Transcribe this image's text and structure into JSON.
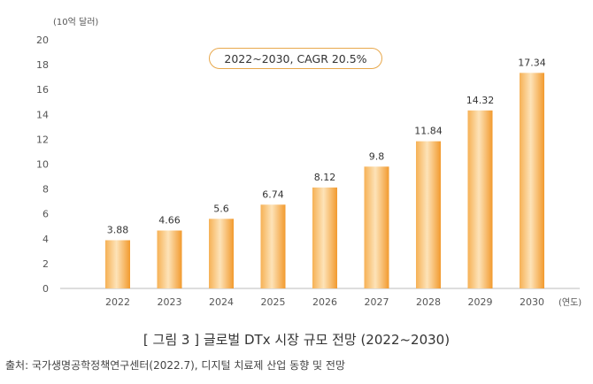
{
  "chart_data": {
    "type": "bar",
    "categories": [
      "2022",
      "2023",
      "2024",
      "2025",
      "2026",
      "2027",
      "2028",
      "2029",
      "2030"
    ],
    "values": [
      3.88,
      4.66,
      5.6,
      6.74,
      8.12,
      9.8,
      11.84,
      14.32,
      17.34
    ],
    "value_labels": [
      "3.88",
      "4.66",
      "5.6",
      "6.74",
      "8.12",
      "9.8",
      "11.84",
      "14.32",
      "17.34"
    ],
    "ylabel": "(10억 달러)",
    "xlabel": "(연도)",
    "ylim": [
      0,
      20
    ],
    "yticks": [
      "0",
      "2",
      "4",
      "6",
      "8",
      "10",
      "12",
      "14",
      "16",
      "18",
      "20"
    ],
    "annotation": "2022~2030, CAGR 20.5%",
    "bar_color": "#f2a33c",
    "grid": false,
    "legend": "none"
  },
  "caption": "[ 그림 3 ] 글로벌 DTx 시장 규모 전망 (2022~2030)",
  "source": "출처: 국가생명공학정책연구센터(2022.7), 디지털 치료제 산업 동향 및 전망"
}
